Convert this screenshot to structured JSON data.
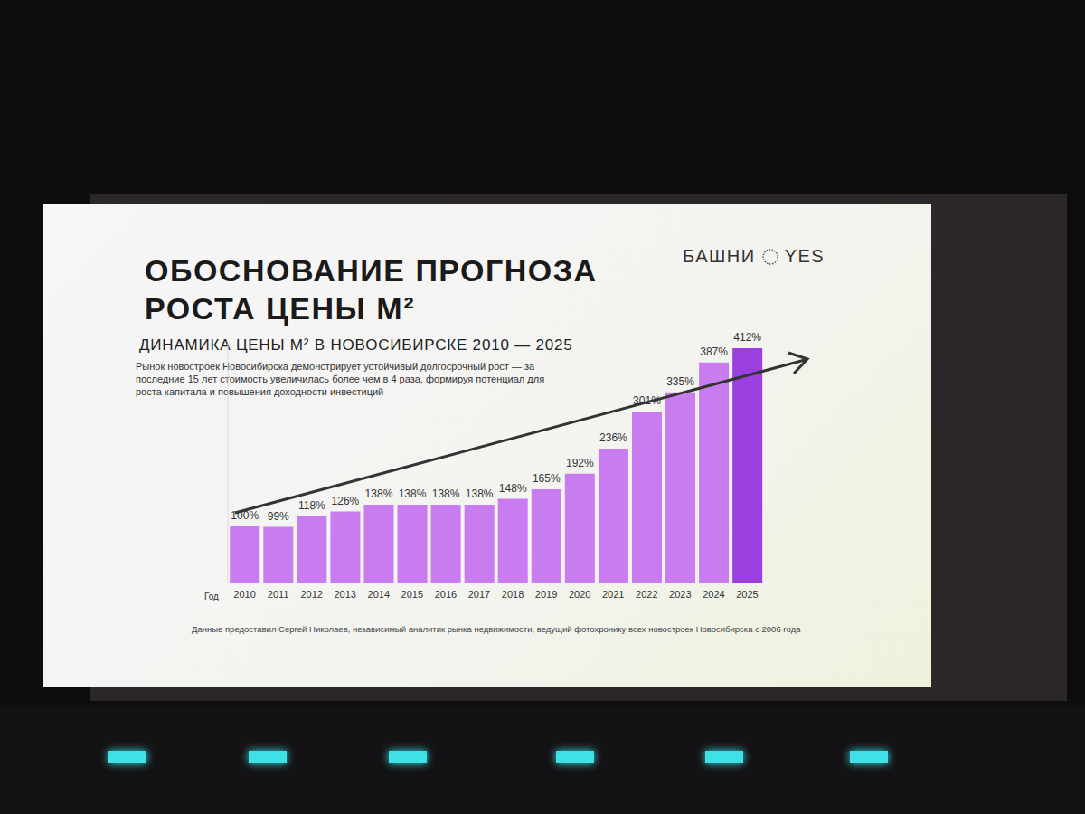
{
  "chart_data": {
    "type": "bar",
    "title": "ОБОСНОВАНИЕ ПРОГНОЗА РОСТА ЦЕНЫ М²",
    "subtitle": "ДИНАМИКА ЦЕНЫ М² В НОВОСИБИРСКЕ 2010 — 2025",
    "description": "Рынок новостроек Новосибирска демонстрирует устойчивый долгосрочный рост — за последние 15 лет стоимость увеличилась более чем в 4 раза, формируя потенциал для роста капитала и повышения доходности инвестиций",
    "brand": "БАШНИ YES",
    "x_label": "Год",
    "source": "Данные предоставил Сергей Николаев, независимый аналитик рынка недвижимости, ведущий фотохронику всех новостроек Новосибирска с 2006 года",
    "categories": [
      "2010",
      "2011",
      "2012",
      "2013",
      "2014",
      "2015",
      "2016",
      "2017",
      "2018",
      "2019",
      "2020",
      "2021",
      "2022",
      "2023",
      "2024",
      "2025"
    ],
    "values": [
      100,
      99,
      118,
      126,
      138,
      138,
      138,
      138,
      148,
      165,
      192,
      236,
      301,
      335,
      387,
      412
    ],
    "value_labels": [
      "100%",
      "99%",
      "118%",
      "126%",
      "138%",
      "138%",
      "138%",
      "138%",
      "148%",
      "165%",
      "192%",
      "236%",
      "301%",
      "335%",
      "387%",
      "412%"
    ],
    "data_labels": true,
    "colors": [
      "#c97bf0",
      "#c97bf0",
      "#c97bf0",
      "#c97bf0",
      "#c97bf0",
      "#c97bf0",
      "#c97bf0",
      "#c97bf0",
      "#c97bf0",
      "#c97bf0",
      "#c97bf0",
      "#c97bf0",
      "#c97bf0",
      "#c97bf0",
      "#c97bf0",
      "#9a3fe0"
    ],
    "ylim": [
      0,
      420
    ],
    "tick_labels": "x",
    "grid": false
  }
}
